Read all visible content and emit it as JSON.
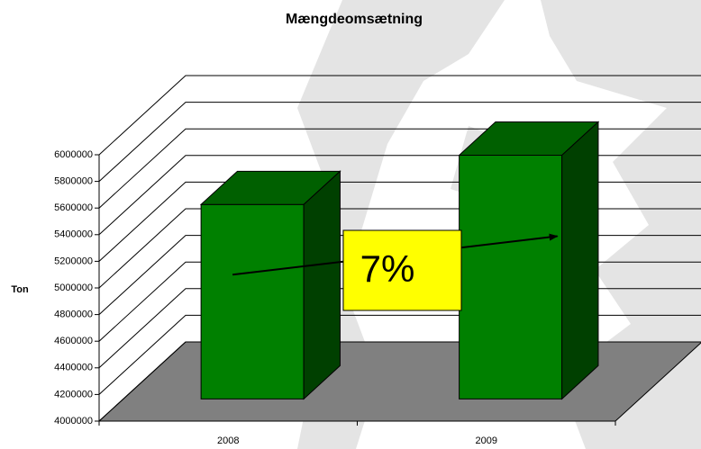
{
  "chart_data": {
    "type": "bar",
    "title": "Mængdeomsætning",
    "ylabel": "Ton",
    "categories": [
      "2008",
      "2009"
    ],
    "values": [
      5460000,
      5830000
    ],
    "color": "#008000",
    "ylim": [
      4000000,
      6000000
    ],
    "yticks": [
      4000000,
      4200000,
      4400000,
      4600000,
      4800000,
      5000000,
      5200000,
      5400000,
      5600000,
      5800000,
      6000000
    ],
    "grid": true,
    "annotation": "7%"
  }
}
